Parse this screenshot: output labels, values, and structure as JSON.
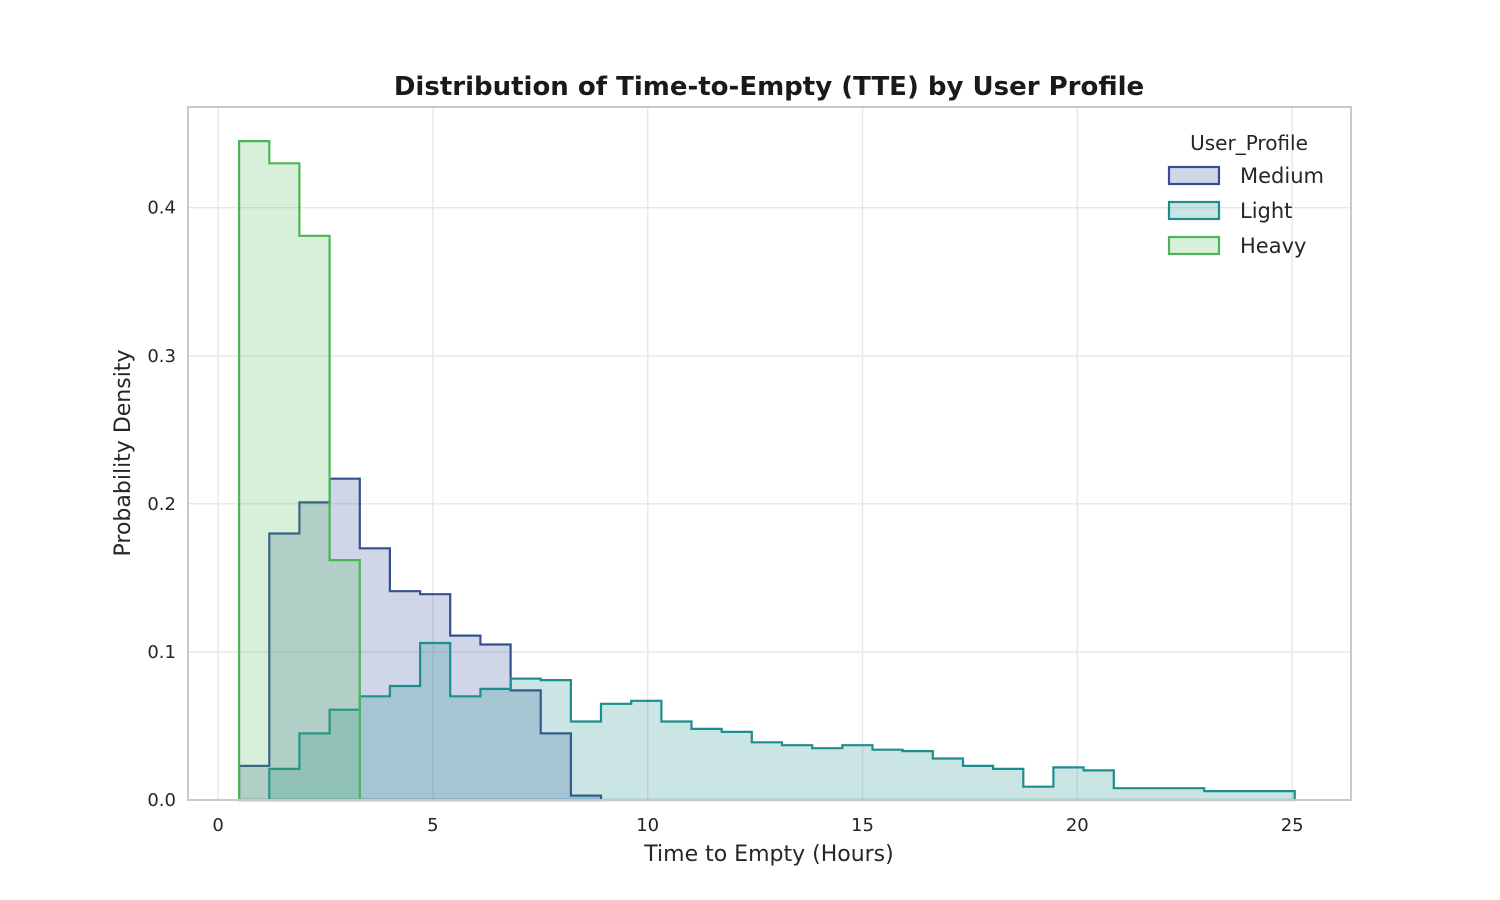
{
  "figure": {
    "background": "#ffffff",
    "text_color": "#262626"
  },
  "chart_data": {
    "type": "step-histogram",
    "stat": "probability-density",
    "title": "Distribution of Time-to-Empty (TTE) by User Profile",
    "xlabel": "Time to Empty (Hours)",
    "ylabel": "Probability Density",
    "xlim": [
      -0.7,
      26.37
    ],
    "ylim": [
      0,
      0.468
    ],
    "xticks": [
      0,
      5,
      10,
      15,
      20,
      25
    ],
    "xtick_labels": [
      "0",
      "5",
      "10",
      "15",
      "20",
      "25"
    ],
    "yticks": [
      0.0,
      0.1,
      0.2,
      0.3,
      0.4
    ],
    "ytick_labels": [
      "0.0",
      "0.1",
      "0.2",
      "0.3",
      "0.4"
    ],
    "grid": true,
    "bin_width": 0.702,
    "legend": {
      "title": "User_Profile",
      "position": "upper right"
    },
    "series": [
      {
        "name": "Medium",
        "bin_start": 0.49,
        "stroke": "#35508e",
        "fill": "rgba(63,90,158,0.25)",
        "values": [
          0.023,
          0.18,
          0.201,
          0.217,
          0.17,
          0.141,
          0.139,
          0.111,
          0.105,
          0.074,
          0.045,
          0.003
        ]
      },
      {
        "name": "Light",
        "bin_start": 1.192,
        "stroke": "#1e8d8d",
        "fill": "rgba(30,141,141,0.23)",
        "values": [
          0.021,
          0.045,
          0.061,
          0.07,
          0.077,
          0.106,
          0.07,
          0.075,
          0.082,
          0.081,
          0.053,
          0.065,
          0.067,
          0.053,
          0.048,
          0.046,
          0.039,
          0.037,
          0.035,
          0.037,
          0.034,
          0.033,
          0.028,
          0.023,
          0.021,
          0.009,
          0.022,
          0.02,
          0.008,
          0.008,
          0.008,
          0.006,
          0.006,
          0.006
        ]
      },
      {
        "name": "Heavy",
        "bin_start": 0.49,
        "stroke": "#4db556",
        "fill": "rgba(77,181,86,0.22)",
        "values": [
          0.445,
          0.43,
          0.381,
          0.162
        ]
      }
    ]
  }
}
